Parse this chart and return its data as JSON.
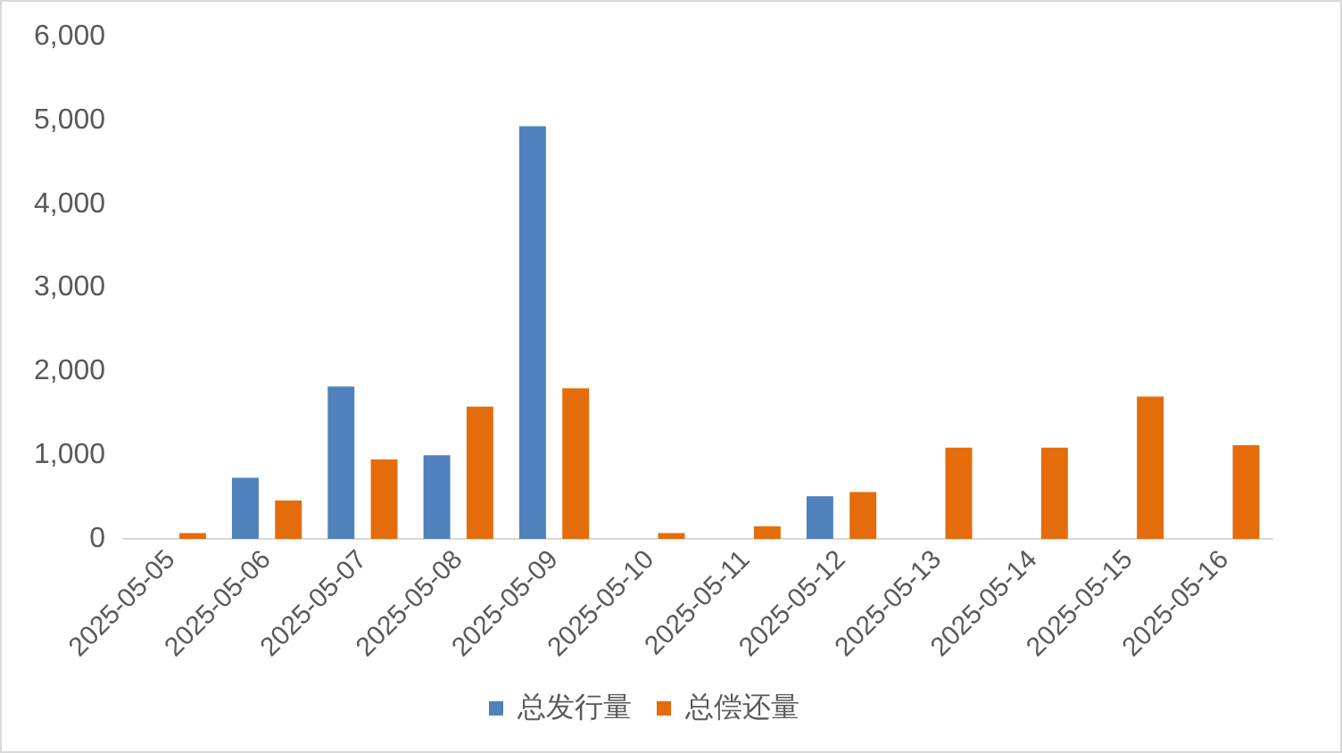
{
  "chart_data": {
    "type": "bar",
    "categories": [
      "2025-05-05",
      "2025-05-06",
      "2025-05-07",
      "2025-05-08",
      "2025-05-09",
      "2025-05-10",
      "2025-05-11",
      "2025-05-12",
      "2025-05-13",
      "2025-05-14",
      "2025-05-15",
      "2025-05-16"
    ],
    "series": [
      {
        "name": "总发行量",
        "color": "#4f81bd",
        "values": [
          null,
          730,
          1820,
          1000,
          4930,
          null,
          null,
          510,
          null,
          null,
          null,
          null
        ]
      },
      {
        "name": "总偿还量",
        "color": "#e46c0a",
        "values": [
          70,
          460,
          950,
          1580,
          1800,
          70,
          150,
          560,
          1090,
          1090,
          1700,
          1120
        ]
      }
    ],
    "ylim": [
      0,
      6000
    ],
    "yticks": [
      0,
      {
        "value": 1000,
        "label": "1,000"
      },
      {
        "value": 2000,
        "label": "2,000"
      },
      {
        "value": 3000,
        "label": "3,000"
      },
      {
        "value": 4000,
        "label": "4,000"
      },
      {
        "value": 5000,
        "label": "5,000"
      },
      {
        "value": 6000,
        "label": "6,000"
      }
    ],
    "grid": false,
    "legend": "bottom"
  }
}
